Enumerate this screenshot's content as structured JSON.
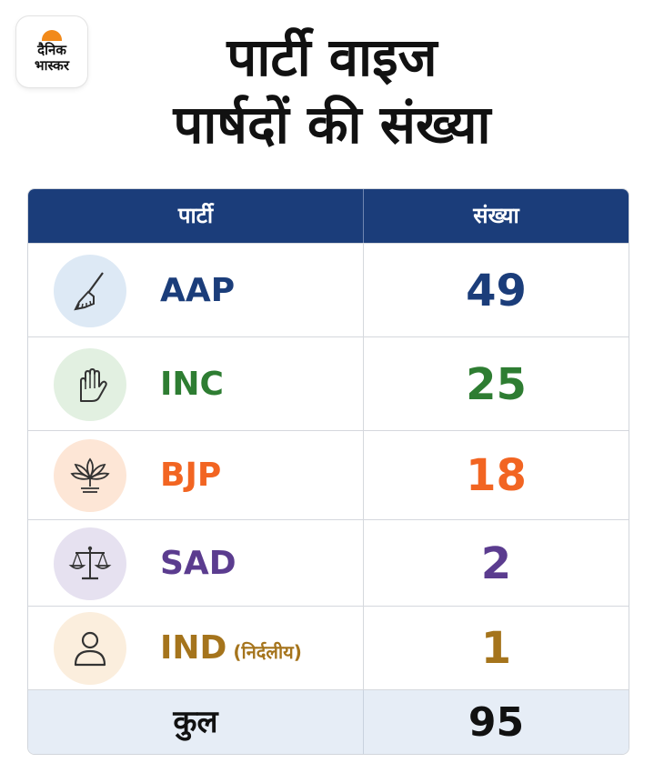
{
  "brand": {
    "line1": "दैनिक",
    "line2": "भास्कर"
  },
  "title": {
    "line1": "पार्टी वाइज",
    "line2": "पार्षदों की संख्या"
  },
  "table": {
    "headers": {
      "party": "पार्टी",
      "count": "संख्या"
    },
    "total_label": "कुल",
    "total_value": "95"
  },
  "chart_data": {
    "type": "table",
    "columns": [
      "पार्टी",
      "संख्या"
    ],
    "rows": [
      {
        "party": "AAP",
        "note": "",
        "count": 49,
        "color": "#1b3d7a",
        "icon": "broom-icon",
        "icon_bg": "#dde9f5"
      },
      {
        "party": "INC",
        "note": "",
        "count": 25,
        "color": "#2e7d32",
        "icon": "hand-icon",
        "icon_bg": "#e2f0e1"
      },
      {
        "party": "BJP",
        "note": "",
        "count": 18,
        "color": "#f26522",
        "icon": "lotus-icon",
        "icon_bg": "#fde6d6"
      },
      {
        "party": "SAD",
        "note": "",
        "count": 2,
        "color": "#5b3c8f",
        "icon": "scales-icon",
        "icon_bg": "#e6e1f0"
      },
      {
        "party": "IND",
        "note": "(निर्दलीय)",
        "count": 1,
        "color": "#a5741c",
        "icon": "person-icon",
        "icon_bg": "#fbeedd"
      }
    ],
    "total": 95
  }
}
